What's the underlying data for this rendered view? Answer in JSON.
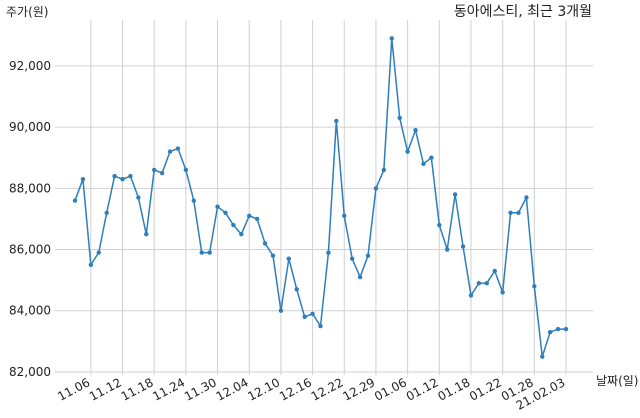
{
  "chart_data": {
    "type": "line",
    "title": "동아에스티, 최근 3개월",
    "y_label": "주가(원)",
    "x_label": "날짜(일)",
    "categories": [
      null,
      null,
      "11.06",
      null,
      null,
      null,
      "11.12",
      null,
      null,
      null,
      "11.18",
      null,
      null,
      null,
      "11.24",
      null,
      null,
      null,
      "11.30",
      null,
      null,
      null,
      "12.04",
      null,
      null,
      null,
      "12.10",
      null,
      null,
      null,
      "12.16",
      null,
      null,
      null,
      "12.22",
      null,
      null,
      null,
      "12.29",
      null,
      null,
      null,
      "01.06",
      null,
      null,
      null,
      "01.12",
      null,
      null,
      null,
      "01.18",
      null,
      null,
      null,
      "01.22",
      null,
      null,
      null,
      "01.28",
      null,
      null,
      null,
      "21.02.03"
    ],
    "series": [
      {
        "color": "#2e7ebc",
        "values": [
          87600,
          88300,
          85500,
          85900,
          87200,
          88400,
          88300,
          88400,
          87700,
          86500,
          88600,
          88500,
          89200,
          89300,
          88600,
          87600,
          85900,
          85900,
          87400,
          87200,
          86800,
          86500,
          87100,
          87000,
          86200,
          85800,
          84000,
          85700,
          84700,
          83800,
          83900,
          83500,
          85900,
          90200,
          87100,
          85700,
          85100,
          85800,
          88000,
          88600,
          92900,
          90300,
          89200,
          89900,
          88800,
          89000,
          86800,
          86000,
          87800,
          86100,
          84500,
          84900,
          84900,
          85300,
          84600,
          87200,
          87200,
          87700,
          84800,
          82500,
          83300,
          83400,
          83400
        ]
      }
    ],
    "ylim": [
      81900,
      93500
    ],
    "yticks": [
      {
        "value": 82000,
        "label": "82,000"
      },
      {
        "value": 84000,
        "label": "84,000"
      },
      {
        "value": 86000,
        "label": "86,000"
      },
      {
        "value": 88000,
        "label": "88,000"
      },
      {
        "value": 90000,
        "label": "90,000"
      },
      {
        "value": 92000,
        "label": "92,000"
      }
    ],
    "grid": true
  }
}
